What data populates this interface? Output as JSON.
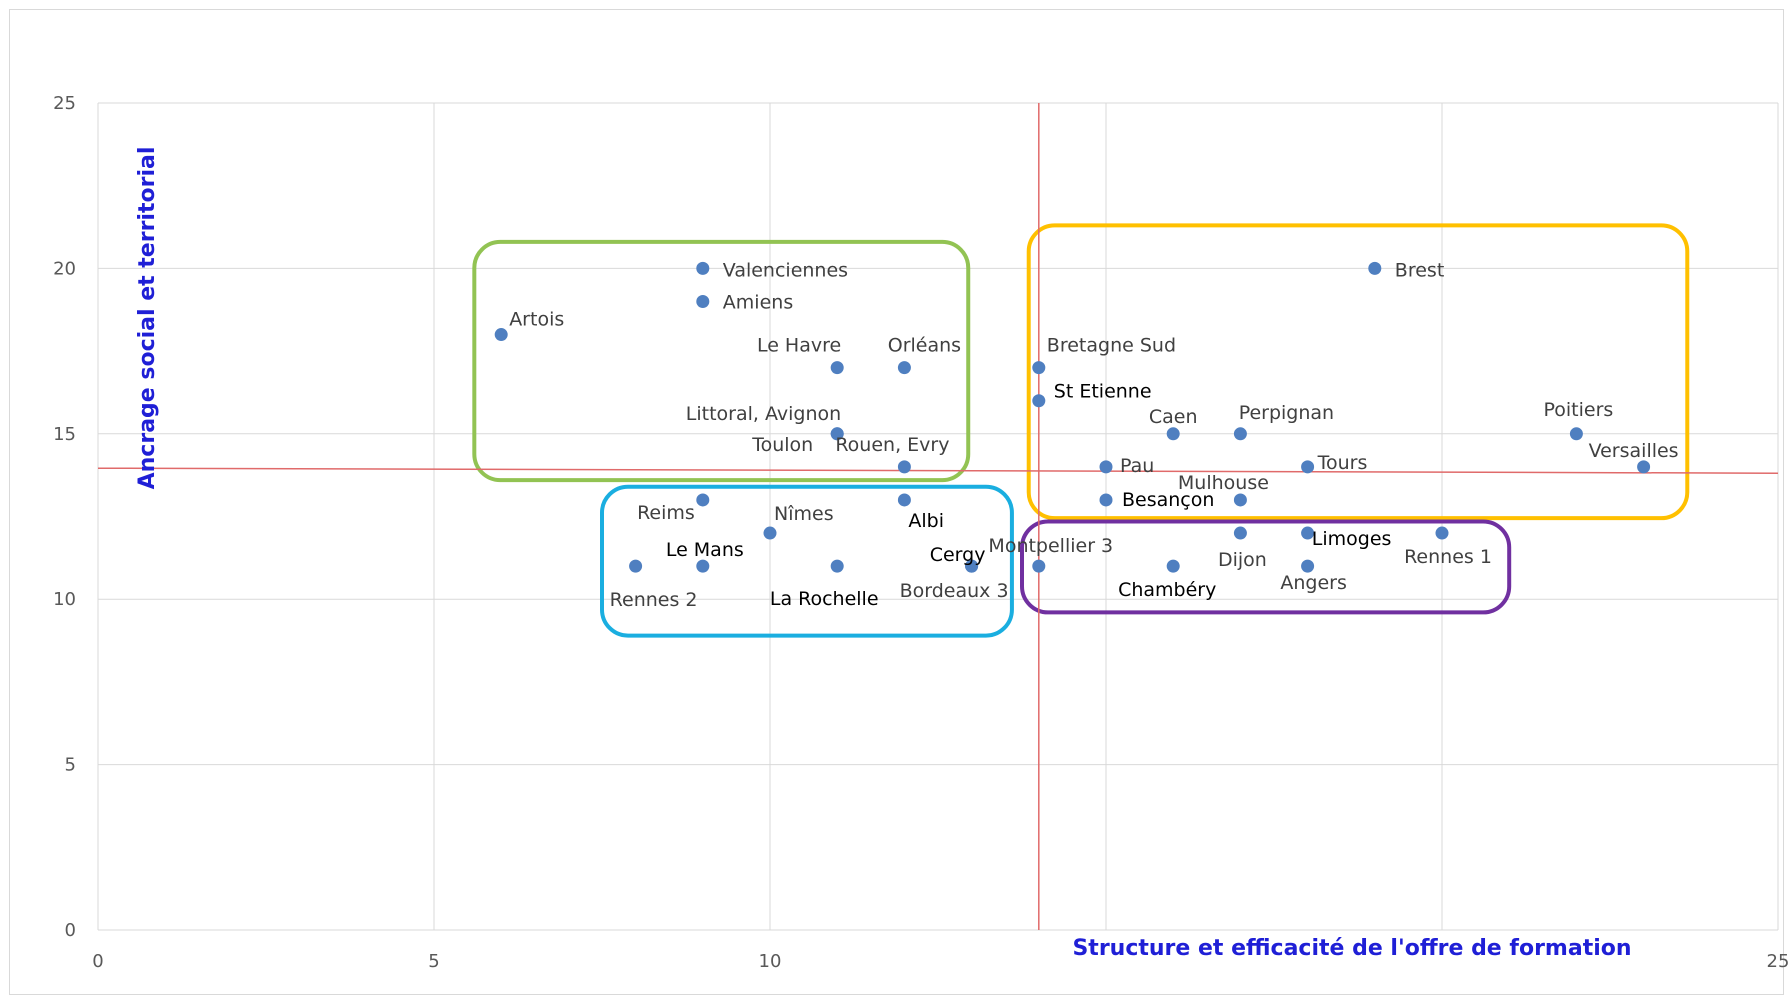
{
  "chart_data": {
    "type": "scatter",
    "xlabel": "Structure et efficacité de l'offre de formation",
    "ylabel": "Ancrage social et territorial",
    "xlim": [
      0,
      25
    ],
    "ylim": [
      0,
      25
    ],
    "xticks": [
      "0",
      "5",
      "10",
      "25"
    ],
    "yticks": [
      "0",
      "5",
      "10",
      "15",
      "20",
      "25"
    ],
    "grid": true,
    "point_color": "#4f7fc0",
    "quadrant_line_color": "#e06a6a",
    "quadrant_lines": {
      "x": 14,
      "y": 13.9
    },
    "points": [
      {
        "label": "Valenciennes",
        "x": 9,
        "y": 20
      },
      {
        "label": "Amiens",
        "x": 9,
        "y": 19
      },
      {
        "label": "Artois",
        "x": 6,
        "y": 18
      },
      {
        "label": "Le Havre",
        "x": 11,
        "y": 17
      },
      {
        "label": "Orléans",
        "x": 12,
        "y": 17
      },
      {
        "label": "Littoral, Avignon",
        "x": 11,
        "y": 15
      },
      {
        "label": "Toulon",
        "x": 11,
        "y": 15
      },
      {
        "label": "Rouen, Evry",
        "x": 12,
        "y": 14
      },
      {
        "label": "Reims",
        "x": 9,
        "y": 13
      },
      {
        "label": "Albi",
        "x": 12,
        "y": 13
      },
      {
        "label": "Nîmes",
        "x": 10,
        "y": 12
      },
      {
        "label": "Le Mans",
        "x": 9,
        "y": 11
      },
      {
        "label": "Rennes 2",
        "x": 8,
        "y": 11
      },
      {
        "label": "La Rochelle",
        "x": 11,
        "y": 11
      },
      {
        "label": "Cergy",
        "x": 13,
        "y": 11
      },
      {
        "label": "Bordeaux 3",
        "x": 13,
        "y": 11
      },
      {
        "label": "Brest",
        "x": 19,
        "y": 20
      },
      {
        "label": "Bretagne Sud",
        "x": 14,
        "y": 17
      },
      {
        "label": "St Etienne",
        "x": 14,
        "y": 16
      },
      {
        "label": "Caen",
        "x": 16,
        "y": 15
      },
      {
        "label": "Perpignan",
        "x": 17,
        "y": 15
      },
      {
        "label": "Poitiers",
        "x": 22,
        "y": 15
      },
      {
        "label": "Pau",
        "x": 15,
        "y": 14
      },
      {
        "label": "Tours",
        "x": 18,
        "y": 14
      },
      {
        "label": "Versailles",
        "x": 23,
        "y": 14
      },
      {
        "label": "Besançon",
        "x": 15,
        "y": 13
      },
      {
        "label": "Mulhouse",
        "x": 17,
        "y": 13
      },
      {
        "label": "Montpellier 3",
        "x": 14,
        "y": 11
      },
      {
        "label": "Chambéry",
        "x": 16,
        "y": 11
      },
      {
        "label": "Dijon",
        "x": 17,
        "y": 12
      },
      {
        "label": "Limoges",
        "x": 18,
        "y": 12
      },
      {
        "label": "Angers",
        "x": 18,
        "y": 11
      },
      {
        "label": "Rennes 1",
        "x": 20,
        "y": 12
      }
    ],
    "groups": [
      {
        "color": "#92c353",
        "xrange": [
          5.6,
          12.95
        ],
        "yrange": [
          13.6,
          20.8
        ]
      },
      {
        "color": "#1aaee0",
        "xrange": [
          7.5,
          13.6
        ],
        "yrange": [
          8.9,
          13.4
        ]
      },
      {
        "color": "#ffc000",
        "xrange": [
          13.85,
          23.65
        ],
        "yrange": [
          12.45,
          21.3
        ]
      },
      {
        "color": "#7030a0",
        "xrange": [
          13.75,
          21.0
        ],
        "yrange": [
          9.6,
          12.35
        ]
      }
    ]
  }
}
